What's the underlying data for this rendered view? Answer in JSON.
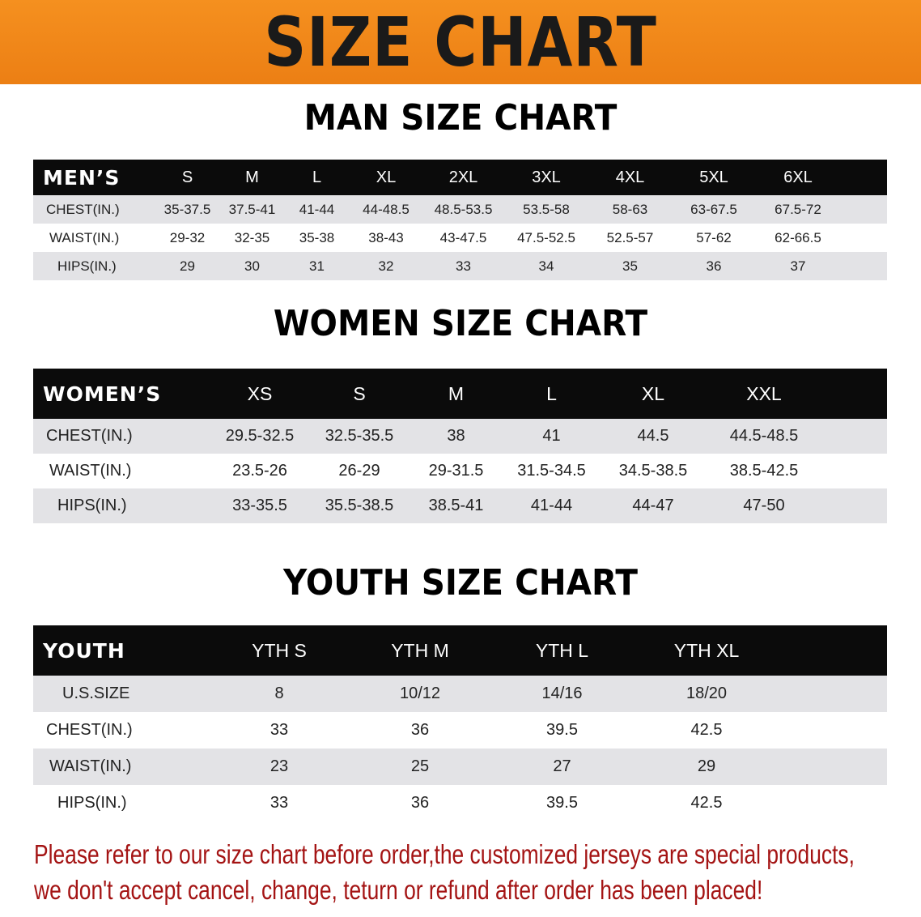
{
  "banner_title": "SIZE CHART",
  "tables": [
    {
      "id": "men",
      "title": "MAN SIZE CHART",
      "header_label": "MEN’S",
      "sizes": [
        "S",
        "M",
        "L",
        "XL",
        "2XL",
        "3XL",
        "4XL",
        "5XL",
        "6XL"
      ],
      "rows": [
        {
          "label": "CHEST(IN.)",
          "values": [
            "35-37.5",
            "37.5-41",
            "41-44",
            "44-48.5",
            "48.5-53.5",
            "53.5-58",
            "58-63",
            "63-67.5",
            "67.5-72"
          ]
        },
        {
          "label": "WAIST(IN.)",
          "values": [
            "29-32",
            "32-35",
            "35-38",
            "38-43",
            "43-47.5",
            "47.5-52.5",
            "52.5-57",
            "57-62",
            "62-66.5"
          ]
        },
        {
          "label": "HIPS(IN.)",
          "values": [
            "29",
            "30",
            "31",
            "32",
            "33",
            "34",
            "35",
            "36",
            "37"
          ]
        }
      ]
    },
    {
      "id": "women",
      "title": "WOMEN SIZE CHART",
      "header_label": "WOMEN’S",
      "sizes": [
        "XS",
        "S",
        "M",
        "L",
        "XL",
        "XXL"
      ],
      "rows": [
        {
          "label": "CHEST(IN.)",
          "values": [
            "29.5-32.5",
            "32.5-35.5",
            "38",
            "41",
            "44.5",
            "44.5-48.5"
          ]
        },
        {
          "label": "WAIST(IN.)",
          "values": [
            "23.5-26",
            "26-29",
            "29-31.5",
            "31.5-34.5",
            "34.5-38.5",
            "38.5-42.5"
          ]
        },
        {
          "label": "HIPS(IN.)",
          "values": [
            "33-35.5",
            "35.5-38.5",
            "38.5-41",
            "41-44",
            "44-47",
            "47-50"
          ]
        }
      ]
    },
    {
      "id": "youth",
      "title": "YOUTH SIZE CHART",
      "header_label": "YOUTH",
      "sizes": [
        "YTH S",
        "YTH M",
        "YTH L",
        "YTH XL"
      ],
      "rows": [
        {
          "label": "U.S.SIZE",
          "values": [
            "8",
            "10/12",
            "14/16",
            "18/20"
          ]
        },
        {
          "label": "CHEST(IN.)",
          "values": [
            "33",
            "36",
            "39.5",
            "42.5"
          ]
        },
        {
          "label": "WAIST(IN.)",
          "values": [
            "23",
            "25",
            "27",
            "29"
          ]
        },
        {
          "label": "HIPS(IN.)",
          "values": [
            "33",
            "36",
            "39.5",
            "42.5"
          ]
        }
      ]
    }
  ],
  "notice": {
    "line1": "Please refer to our size chart before order,the customized jerseys are special products,",
    "line2": "we don't accept cancel, change, teturn or refund after order has been placed!"
  },
  "colors": {
    "banner": "#ec7f14",
    "header_row": "#0b0b0b",
    "alt_row": "#e3e3e6",
    "notice_text": "#a41414"
  }
}
